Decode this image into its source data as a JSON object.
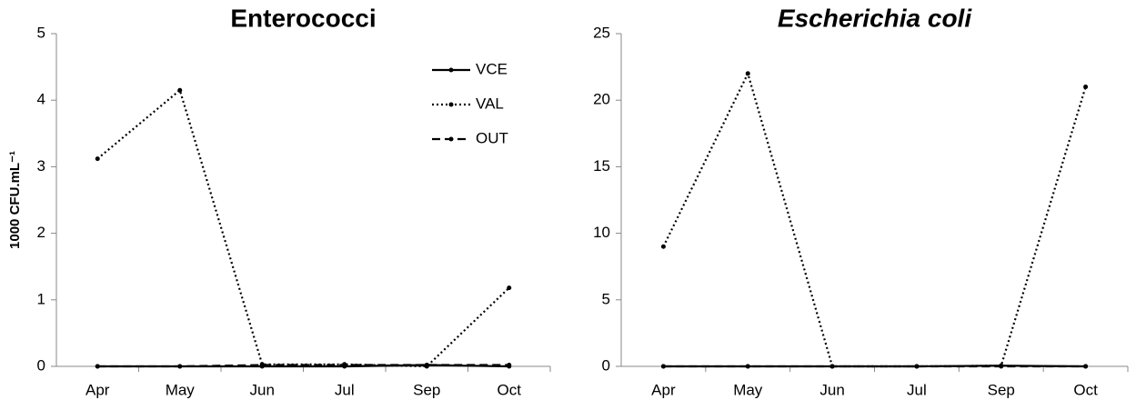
{
  "chart_data": [
    {
      "type": "line",
      "title": "Enterococci",
      "title_style": "normal",
      "y_label": "1000 CFU.mL⁻¹",
      "categories": [
        "Apr",
        "May",
        "Jun",
        "Jul",
        "Sep",
        "Oct"
      ],
      "ylim": [
        0,
        5
      ],
      "yticks": [
        0,
        1,
        2,
        3,
        4,
        5
      ],
      "legend": "upper right",
      "series": [
        {
          "name": "VCE",
          "color": "#000000",
          "dash": "solid",
          "values": [
            0,
            0,
            0,
            0,
            0.02,
            0
          ]
        },
        {
          "name": "VAL",
          "color": "#000000",
          "dash": "dotted",
          "values": [
            3.12,
            4.15,
            0.03,
            0.03,
            0,
            1.18
          ]
        },
        {
          "name": "OUT",
          "color": "#000000",
          "dash": "dashed",
          "values": [
            0,
            0,
            0.02,
            0.02,
            0.02,
            0.02
          ]
        }
      ]
    },
    {
      "type": "line",
      "title": "Escherichia coli",
      "title_style": "italic",
      "categories": [
        "Apr",
        "May",
        "Jun",
        "Jul",
        "Sep",
        "Oct"
      ],
      "ylim": [
        0,
        25
      ],
      "yticks": [
        0,
        5,
        10,
        15,
        20,
        25
      ],
      "series": [
        {
          "color": "#000000",
          "dash": "solid",
          "values": [
            0,
            0,
            0,
            0,
            0.05,
            0
          ]
        },
        {
          "color": "#000000",
          "dash": "dotted",
          "values": [
            9,
            22,
            0,
            0,
            0.05,
            21
          ]
        },
        {
          "color": "#000000",
          "dash": "dashed",
          "values": [
            0,
            0,
            0,
            0,
            0,
            0
          ]
        }
      ]
    }
  ]
}
